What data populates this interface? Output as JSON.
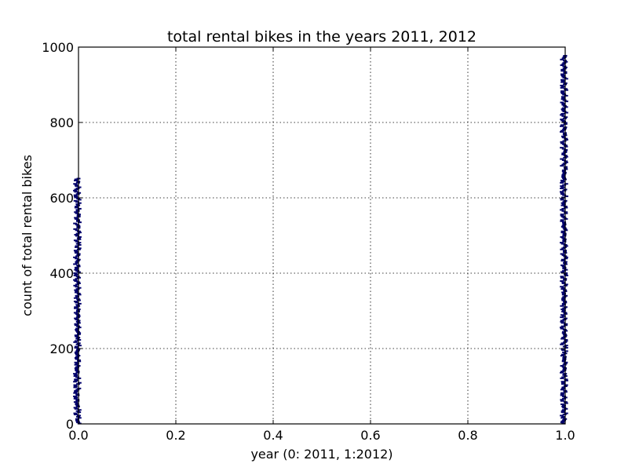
{
  "chart_data": {
    "type": "scatter",
    "title": "total rental bikes in the years 2011, 2012",
    "xlabel": "year (0: 2011, 1:2012)",
    "ylabel": "count of total rental bikes",
    "xlim": [
      0.0,
      1.0
    ],
    "ylim": [
      0,
      1000
    ],
    "x_ticks": [
      "0.0",
      "0.2",
      "0.4",
      "0.6",
      "0.8",
      "1.0"
    ],
    "y_ticks": [
      "0",
      "200",
      "400",
      "600",
      "800",
      "1000"
    ],
    "grid": true,
    "marker_color": "#00006b",
    "series": [
      {
        "x": 0,
        "y_min": 1,
        "y_max": 651
      },
      {
        "x": 1,
        "y_min": 1,
        "y_max": 977
      }
    ]
  }
}
